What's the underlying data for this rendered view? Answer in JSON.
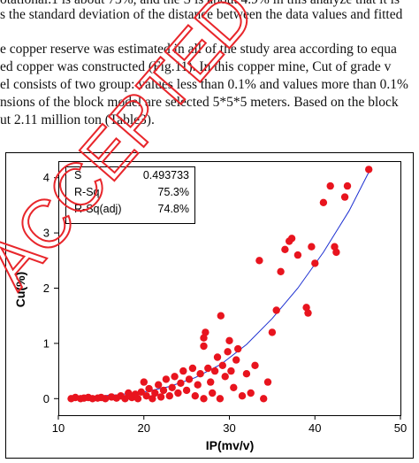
{
  "paper": {
    "lines": [
      "otational.1 is about 73%, and the S is about 4.9% in this analyze that it is",
      "s the standard deviation of the distance between the data values and fitted",
      "e copper reserve was estimated in all of the study area according to equa",
      "ed copper was constructed (Fig.11). In this copper mine, Cut of grade v",
      "el consists of two group: values less than 0.1% and values more than 0.1%",
      "nsions of the block model are selected 5*5*5 meters. Based on the block",
      "ut 2.11 million ton (Table3)."
    ]
  },
  "watermark": {
    "text": "ACCEPTED",
    "color": "#e8262b"
  },
  "colors": {
    "points": "#e8141e",
    "fit": "#1c2fd1",
    "axis": "#000000"
  },
  "chart_data": {
    "type": "scatter",
    "xlabel": "IP(mv/v)",
    "ylabel": "Cu(%)",
    "xlim": [
      10,
      50
    ],
    "ylim": [
      -0.3,
      4.3
    ],
    "x_ticks": [
      10,
      20,
      30,
      40,
      50
    ],
    "y_ticks": [
      0,
      1,
      2,
      3,
      4
    ],
    "stats": [
      {
        "label": "S",
        "value": "0.493733"
      },
      {
        "label": "R-Sq",
        "value": "75.3%"
      },
      {
        "label": "R-Sq(adj)",
        "value": "74.8%"
      }
    ],
    "fit_curve": {
      "x": [
        11.5,
        14,
        17,
        20,
        23,
        26,
        29,
        32,
        35,
        38,
        41,
        44,
        46.3
      ],
      "y": [
        0.03,
        0.04,
        0.07,
        0.12,
        0.22,
        0.38,
        0.62,
        0.98,
        1.45,
        2.0,
        2.65,
        3.4,
        4.1
      ]
    },
    "points": [
      {
        "x": 11.5,
        "y": 0.0
      },
      {
        "x": 12.0,
        "y": 0.02
      },
      {
        "x": 12.6,
        "y": 0.0
      },
      {
        "x": 13.0,
        "y": 0.01
      },
      {
        "x": 13.5,
        "y": 0.02
      },
      {
        "x": 14.0,
        "y": 0.0
      },
      {
        "x": 14.6,
        "y": 0.01
      },
      {
        "x": 15.0,
        "y": 0.02
      },
      {
        "x": 15.5,
        "y": 0.0
      },
      {
        "x": 16.2,
        "y": 0.03
      },
      {
        "x": 16.8,
        "y": 0.01
      },
      {
        "x": 17.3,
        "y": 0.05
      },
      {
        "x": 17.8,
        "y": 0.0
      },
      {
        "x": 18.2,
        "y": 0.1
      },
      {
        "x": 18.6,
        "y": 0.02
      },
      {
        "x": 19.0,
        "y": 0.08
      },
      {
        "x": 19.3,
        "y": 0.0
      },
      {
        "x": 19.7,
        "y": 0.12
      },
      {
        "x": 20.0,
        "y": 0.3
      },
      {
        "x": 20.3,
        "y": 0.05
      },
      {
        "x": 20.6,
        "y": 0.18
      },
      {
        "x": 21.0,
        "y": 0.0
      },
      {
        "x": 21.3,
        "y": 0.1
      },
      {
        "x": 21.7,
        "y": 0.25
      },
      {
        "x": 22.0,
        "y": 0.03
      },
      {
        "x": 22.3,
        "y": 0.15
      },
      {
        "x": 22.6,
        "y": 0.35
      },
      {
        "x": 23.0,
        "y": 0.05
      },
      {
        "x": 23.3,
        "y": 0.2
      },
      {
        "x": 23.6,
        "y": 0.4
      },
      {
        "x": 24.0,
        "y": 0.1
      },
      {
        "x": 24.3,
        "y": 0.28
      },
      {
        "x": 24.6,
        "y": 0.5
      },
      {
        "x": 25.0,
        "y": 0.15
      },
      {
        "x": 25.3,
        "y": 0.35
      },
      {
        "x": 25.7,
        "y": 0.55
      },
      {
        "x": 26.0,
        "y": 0.05
      },
      {
        "x": 26.3,
        "y": 0.25
      },
      {
        "x": 26.6,
        "y": 0.45
      },
      {
        "x": 27.0,
        "y": 0.0
      },
      {
        "x": 27.0,
        "y": 0.95
      },
      {
        "x": 27.0,
        "y": 1.1
      },
      {
        "x": 27.2,
        "y": 1.2
      },
      {
        "x": 27.5,
        "y": 0.55
      },
      {
        "x": 27.8,
        "y": 0.3
      },
      {
        "x": 28.0,
        "y": 0.1
      },
      {
        "x": 28.3,
        "y": 0.5
      },
      {
        "x": 28.6,
        "y": 0.75
      },
      {
        "x": 28.9,
        "y": 0.0
      },
      {
        "x": 29.0,
        "y": 1.5
      },
      {
        "x": 29.2,
        "y": 0.6
      },
      {
        "x": 29.5,
        "y": 0.4
      },
      {
        "x": 29.8,
        "y": 0.85
      },
      {
        "x": 30.0,
        "y": 1.05
      },
      {
        "x": 30.2,
        "y": 0.5
      },
      {
        "x": 30.5,
        "y": 0.2
      },
      {
        "x": 30.8,
        "y": 0.7
      },
      {
        "x": 31.0,
        "y": 0.9
      },
      {
        "x": 31.5,
        "y": 0.05
      },
      {
        "x": 32.0,
        "y": 0.45
      },
      {
        "x": 32.5,
        "y": 0.1
      },
      {
        "x": 33.0,
        "y": 0.6
      },
      {
        "x": 33.5,
        "y": 2.5
      },
      {
        "x": 34.0,
        "y": 0.0
      },
      {
        "x": 34.5,
        "y": 0.3
      },
      {
        "x": 35.0,
        "y": 1.2
      },
      {
        "x": 35.5,
        "y": 1.6
      },
      {
        "x": 36.0,
        "y": 2.3
      },
      {
        "x": 36.5,
        "y": 2.7
      },
      {
        "x": 37.0,
        "y": 2.85
      },
      {
        "x": 37.3,
        "y": 2.9
      },
      {
        "x": 38.0,
        "y": 2.6
      },
      {
        "x": 39.0,
        "y": 1.65
      },
      {
        "x": 39.2,
        "y": 1.55
      },
      {
        "x": 39.6,
        "y": 2.75
      },
      {
        "x": 40.0,
        "y": 2.45
      },
      {
        "x": 41.0,
        "y": 3.55
      },
      {
        "x": 41.8,
        "y": 3.85
      },
      {
        "x": 42.3,
        "y": 2.75
      },
      {
        "x": 42.5,
        "y": 2.65
      },
      {
        "x": 43.5,
        "y": 3.65
      },
      {
        "x": 43.8,
        "y": 3.85
      },
      {
        "x": 46.3,
        "y": 4.15
      }
    ]
  }
}
